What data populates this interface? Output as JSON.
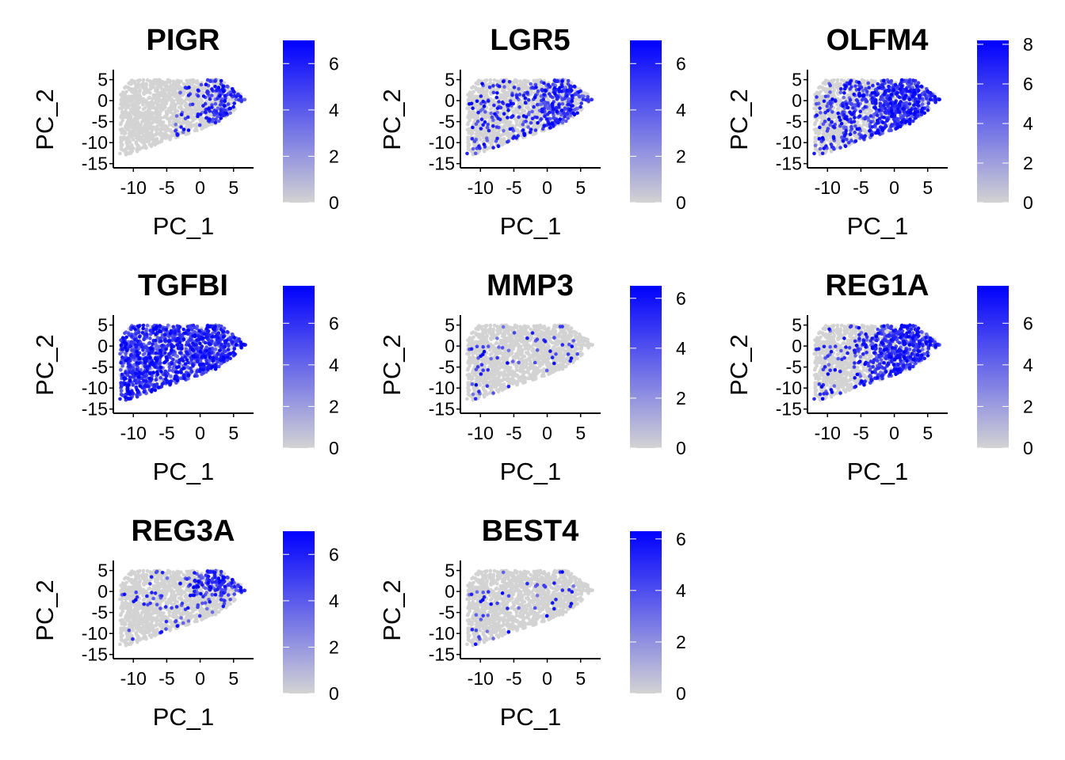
{
  "chart_data": [
    {
      "type": "scatter",
      "title": "PIGR",
      "xlabel": "PC_1",
      "ylabel": "PC_2",
      "xticks": [
        "-10",
        "-5",
        "0",
        "5"
      ],
      "yticks": [
        "5",
        "0",
        "-5",
        "-10",
        "-15"
      ],
      "xlim": [
        -13,
        8
      ],
      "ylim": [
        -16,
        7
      ],
      "colorbar": {
        "min": 0,
        "max": 7,
        "ticks": [
          "0",
          "2",
          "4",
          "6"
        ]
      },
      "low_color": "#d3d3d3",
      "high_color": "#0000ff",
      "expression_pattern": "right"
    },
    {
      "type": "scatter",
      "title": "LGR5",
      "xlabel": "PC_1",
      "ylabel": "PC_2",
      "xticks": [
        "-10",
        "-5",
        "0",
        "5"
      ],
      "yticks": [
        "5",
        "0",
        "-5",
        "-10",
        "-15"
      ],
      "xlim": [
        -13,
        8
      ],
      "ylim": [
        -16,
        7
      ],
      "colorbar": {
        "min": 0,
        "max": 7,
        "ticks": [
          "0",
          "2",
          "4",
          "6"
        ]
      },
      "low_color": "#d3d3d3",
      "high_color": "#0000ff",
      "expression_pattern": "right-scatter"
    },
    {
      "type": "scatter",
      "title": "OLFM4",
      "xlabel": "PC_1",
      "ylabel": "PC_2",
      "xticks": [
        "-10",
        "-5",
        "0",
        "5"
      ],
      "yticks": [
        "5",
        "0",
        "-5",
        "-10",
        "-15"
      ],
      "xlim": [
        -13,
        8
      ],
      "ylim": [
        -16,
        7
      ],
      "colorbar": {
        "min": 0,
        "max": 8.2,
        "ticks": [
          "0",
          "2",
          "4",
          "6",
          "8"
        ]
      },
      "low_color": "#d3d3d3",
      "high_color": "#0000ff",
      "expression_pattern": "broad-right"
    },
    {
      "type": "scatter",
      "title": "TGFBI",
      "xlabel": "PC_1",
      "ylabel": "PC_2",
      "xticks": [
        "-10",
        "-5",
        "0",
        "5"
      ],
      "yticks": [
        "5",
        "0",
        "-5",
        "-10",
        "-15"
      ],
      "xlim": [
        -13,
        8
      ],
      "ylim": [
        -16,
        7
      ],
      "colorbar": {
        "min": 0,
        "max": 7.8,
        "ticks": [
          "0",
          "2",
          "4",
          "6"
        ]
      },
      "low_color": "#d3d3d3",
      "high_color": "#0000ff",
      "expression_pattern": "everywhere"
    },
    {
      "type": "scatter",
      "title": "MMP3",
      "xlabel": "PC_1",
      "ylabel": "PC_2",
      "xticks": [
        "-10",
        "-5",
        "0",
        "5"
      ],
      "yticks": [
        "5",
        "0",
        "-5",
        "-10",
        "-15"
      ],
      "xlim": [
        -13,
        8
      ],
      "ylim": [
        -16,
        7
      ],
      "colorbar": {
        "min": 0,
        "max": 6.5,
        "ticks": [
          "0",
          "2",
          "4",
          "6"
        ]
      },
      "low_color": "#d3d3d3",
      "high_color": "#0000ff",
      "expression_pattern": "sparse"
    },
    {
      "type": "scatter",
      "title": "REG1A",
      "xlabel": "PC_1",
      "ylabel": "PC_2",
      "xticks": [
        "-10",
        "-5",
        "0",
        "5"
      ],
      "yticks": [
        "5",
        "0",
        "-5",
        "-10",
        "-15"
      ],
      "xlim": [
        -13,
        8
      ],
      "ylim": [
        -16,
        7
      ],
      "colorbar": {
        "min": 0,
        "max": 7.8,
        "ticks": [
          "0",
          "2",
          "4",
          "6"
        ]
      },
      "low_color": "#d3d3d3",
      "high_color": "#0000ff",
      "expression_pattern": "upper-right"
    },
    {
      "type": "scatter",
      "title": "REG3A",
      "xlabel": "PC_1",
      "ylabel": "PC_2",
      "xticks": [
        "-10",
        "-5",
        "0",
        "5"
      ],
      "yticks": [
        "5",
        "0",
        "-5",
        "-10",
        "-15"
      ],
      "xlim": [
        -13,
        8
      ],
      "ylim": [
        -16,
        7
      ],
      "colorbar": {
        "min": 0,
        "max": 7,
        "ticks": [
          "0",
          "2",
          "4",
          "6"
        ]
      },
      "low_color": "#d3d3d3",
      "high_color": "#0000ff",
      "expression_pattern": "top-right"
    },
    {
      "type": "scatter",
      "title": "BEST4",
      "xlabel": "PC_1",
      "ylabel": "PC_2",
      "xticks": [
        "-10",
        "-5",
        "0",
        "5"
      ],
      "yticks": [
        "5",
        "0",
        "-5",
        "-10",
        "-15"
      ],
      "xlim": [
        -13,
        8
      ],
      "ylim": [
        -16,
        7
      ],
      "colorbar": {
        "min": 0,
        "max": 6.3,
        "ticks": [
          "0",
          "2",
          "4",
          "6"
        ]
      },
      "low_color": "#d3d3d3",
      "high_color": "#0000ff",
      "expression_pattern": "very-sparse"
    }
  ]
}
